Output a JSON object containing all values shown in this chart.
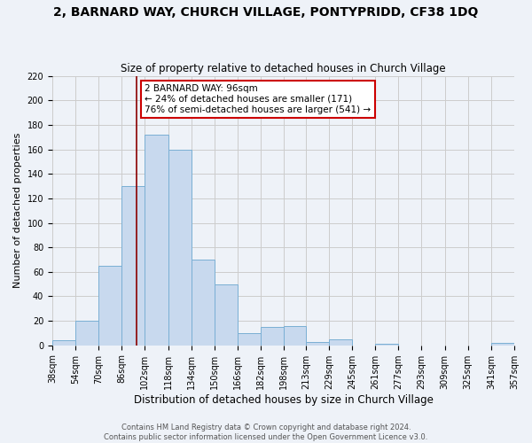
{
  "title": "2, BARNARD WAY, CHURCH VILLAGE, PONTYPRIDD, CF38 1DQ",
  "subtitle": "Size of property relative to detached houses in Church Village",
  "xlabel": "Distribution of detached houses by size in Church Village",
  "ylabel": "Number of detached properties",
  "footer_line1": "Contains HM Land Registry data © Crown copyright and database right 2024.",
  "footer_line2": "Contains public sector information licensed under the Open Government Licence v3.0.",
  "bin_labels": [
    "38sqm",
    "54sqm",
    "70sqm",
    "86sqm",
    "102sqm",
    "118sqm",
    "134sqm",
    "150sqm",
    "166sqm",
    "182sqm",
    "198sqm",
    "213sqm",
    "229sqm",
    "245sqm",
    "261sqm",
    "277sqm",
    "293sqm",
    "309sqm",
    "325sqm",
    "341sqm",
    "357sqm"
  ],
  "bin_edges": [
    38,
    54,
    70,
    86,
    102,
    118,
    134,
    150,
    166,
    182,
    198,
    213,
    229,
    245,
    261,
    277,
    293,
    309,
    325,
    341,
    357
  ],
  "bar_heights": [
    4,
    20,
    65,
    130,
    172,
    160,
    70,
    50,
    10,
    15,
    16,
    3,
    5,
    0,
    1,
    0,
    0,
    0,
    0,
    2
  ],
  "bar_color": "#c8d9ee",
  "bar_edge_color": "#7aafd4",
  "vline_x": 96,
  "vline_color": "#8b0000",
  "annotation_line1": "2 BARNARD WAY: 96sqm",
  "annotation_line2": "← 24% of detached houses are smaller (171)",
  "annotation_line3": "76% of semi-detached houses are larger (541) →",
  "annotation_box_color": "white",
  "annotation_box_edge_color": "#cc0000",
  "ylim": [
    0,
    220
  ],
  "yticks": [
    0,
    20,
    40,
    60,
    80,
    100,
    120,
    140,
    160,
    180,
    200,
    220
  ],
  "grid_color": "#cccccc",
  "bg_color": "#eef2f8",
  "title_fontsize": 10,
  "subtitle_fontsize": 8.5,
  "xlabel_fontsize": 8.5,
  "ylabel_fontsize": 8,
  "tick_fontsize": 7,
  "annotation_fontsize": 7.5,
  "footer_fontsize": 6
}
